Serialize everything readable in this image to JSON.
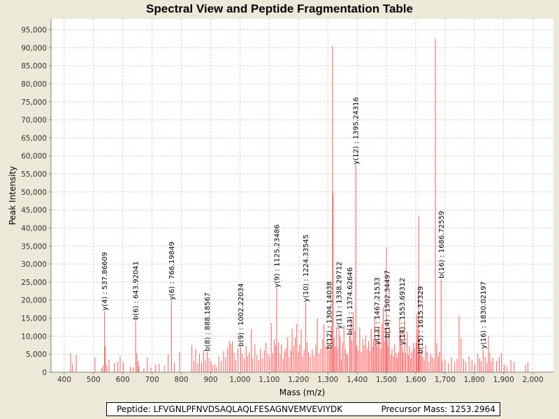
{
  "chart_data": {
    "type": "spectrum",
    "title": "Spectral View and Peptide Fragmentation Table",
    "xlabel": "Mass (m/z)",
    "ylabel": "Peak Intensity",
    "xlim": [
      355,
      2070
    ],
    "ylim": [
      0,
      98000
    ],
    "x_ticks": [
      400,
      500,
      600,
      700,
      800,
      900,
      1000,
      1100,
      1200,
      1300,
      1400,
      1500,
      1600,
      1700,
      1800,
      1900,
      2000
    ],
    "x_tick_labels": [
      "400",
      "500",
      "600",
      "700",
      "800",
      "900",
      "1,000",
      "1,100",
      "1,200",
      "1,300",
      "1,400",
      "1,500",
      "1,600",
      "1,700",
      "1,800",
      "1,900",
      "2,000"
    ],
    "y_ticks": [
      0,
      5000,
      10000,
      15000,
      20000,
      25000,
      30000,
      35000,
      40000,
      45000,
      50000,
      55000,
      60000,
      65000,
      70000,
      75000,
      80000,
      85000,
      90000,
      95000
    ],
    "y_tick_labels": [
      "0",
      "5,000",
      "10,000",
      "15,000",
      "20,000",
      "25,000",
      "30,000",
      "35,000",
      "40,000",
      "45,000",
      "50,000",
      "55,000",
      "60,000",
      "65,000",
      "70,000",
      "75,000",
      "80,000",
      "85,000",
      "90,000",
      "95,000"
    ],
    "grid": true,
    "peak_color": "#ff5a5a",
    "peaks": [
      [
        422,
        5200
      ],
      [
        428,
        2400
      ],
      [
        441,
        4800
      ],
      [
        505,
        4100
      ],
      [
        528,
        1200
      ],
      [
        533,
        1800
      ],
      [
        537.87,
        16900
      ],
      [
        540,
        7200
      ],
      [
        545,
        2000
      ],
      [
        553,
        3500
      ],
      [
        571,
        2500
      ],
      [
        583,
        2900
      ],
      [
        591,
        4400
      ],
      [
        602,
        2600
      ],
      [
        626,
        1500
      ],
      [
        635,
        1400
      ],
      [
        643.92,
        14300
      ],
      [
        648,
        5300
      ],
      [
        652,
        3100
      ],
      [
        655,
        1700
      ],
      [
        672,
        1100
      ],
      [
        684,
        4100
      ],
      [
        696,
        1400
      ],
      [
        712,
        2100
      ],
      [
        724,
        2300
      ],
      [
        742,
        1700
      ],
      [
        755,
        4900
      ],
      [
        766.2,
        19800
      ],
      [
        776,
        2700
      ],
      [
        794,
        5600
      ],
      [
        836,
        7500
      ],
      [
        843,
        3200
      ],
      [
        849,
        6400
      ],
      [
        856,
        2400
      ],
      [
        862,
        5100
      ],
      [
        869,
        2800
      ],
      [
        876,
        6100
      ],
      [
        882,
        3300
      ],
      [
        888.19,
        5600
      ],
      [
        894,
        3900
      ],
      [
        901,
        3000
      ],
      [
        906,
        2000
      ],
      [
        914,
        2200
      ],
      [
        920,
        1400
      ],
      [
        928,
        4300
      ],
      [
        936,
        3100
      ],
      [
        944,
        5800
      ],
      [
        951,
        4100
      ],
      [
        958,
        6800
      ],
      [
        964,
        8600
      ],
      [
        969,
        7900
      ],
      [
        974,
        8600
      ],
      [
        980,
        5400
      ],
      [
        986,
        3300
      ],
      [
        993,
        6600
      ],
      [
        1002.22,
        6900
      ],
      [
        1008,
        5100
      ],
      [
        1015,
        3900
      ],
      [
        1021,
        7300
      ],
      [
        1026,
        4400
      ],
      [
        1032,
        5500
      ],
      [
        1039,
        12000
      ],
      [
        1044,
        3800
      ],
      [
        1051,
        7700
      ],
      [
        1058,
        4800
      ],
      [
        1064,
        3300
      ],
      [
        1070,
        6500
      ],
      [
        1076,
        3800
      ],
      [
        1083,
        6100
      ],
      [
        1089,
        8200
      ],
      [
        1095,
        5100
      ],
      [
        1101,
        4300
      ],
      [
        1107,
        13600
      ],
      [
        1112,
        5300
      ],
      [
        1117,
        9100
      ],
      [
        1122,
        7600
      ],
      [
        1125.23,
        23300
      ],
      [
        1131,
        8400
      ],
      [
        1137,
        5100
      ],
      [
        1142,
        7700
      ],
      [
        1148,
        3600
      ],
      [
        1153,
        5900
      ],
      [
        1158,
        6700
      ],
      [
        1163,
        9700
      ],
      [
        1168,
        4200
      ],
      [
        1174,
        6100
      ],
      [
        1178,
        12100
      ],
      [
        1184,
        7300
      ],
      [
        1189,
        9600
      ],
      [
        1194,
        13500
      ],
      [
        1199,
        5700
      ],
      [
        1204,
        7700
      ],
      [
        1209,
        11900
      ],
      [
        1214,
        4300
      ],
      [
        1219,
        6200
      ],
      [
        1224.34,
        19300
      ],
      [
        1229,
        8300
      ],
      [
        1234,
        5500
      ],
      [
        1240,
        4400
      ],
      [
        1247,
        6300
      ],
      [
        1253,
        4600
      ],
      [
        1259,
        7700
      ],
      [
        1264,
        14900
      ],
      [
        1270,
        5200
      ],
      [
        1276,
        6500
      ],
      [
        1282,
        9100
      ],
      [
        1287,
        13300
      ],
      [
        1293,
        7300
      ],
      [
        1299,
        8400
      ],
      [
        1304.14,
        6200
      ],
      [
        1308,
        6400
      ],
      [
        1312,
        12300
      ],
      [
        1316,
        90500
      ],
      [
        1318,
        49700
      ],
      [
        1321,
        9600
      ],
      [
        1325,
        7200
      ],
      [
        1329,
        12500
      ],
      [
        1333,
        6600
      ],
      [
        1338.3,
        11800
      ],
      [
        1342,
        9900
      ],
      [
        1346,
        3600
      ],
      [
        1350,
        8200
      ],
      [
        1355,
        13000
      ],
      [
        1360,
        6500
      ],
      [
        1364,
        5100
      ],
      [
        1368,
        4800
      ],
      [
        1374.63,
        10100
      ],
      [
        1378,
        15300
      ],
      [
        1382,
        8800
      ],
      [
        1387,
        16600
      ],
      [
        1392,
        11400
      ],
      [
        1395.24,
        57400
      ],
      [
        1399,
        7400
      ],
      [
        1404,
        6100
      ],
      [
        1409,
        12500
      ],
      [
        1414,
        5600
      ],
      [
        1419,
        9200
      ],
      [
        1424,
        7400
      ],
      [
        1429,
        10200
      ],
      [
        1434,
        6500
      ],
      [
        1439,
        8600
      ],
      [
        1443,
        5800
      ],
      [
        1448,
        12100
      ],
      [
        1452,
        7000
      ],
      [
        1456,
        9100
      ],
      [
        1460,
        15500
      ],
      [
        1464,
        9300
      ],
      [
        1467.22,
        7400
      ],
      [
        1472,
        12300
      ],
      [
        1476,
        8400
      ],
      [
        1481,
        6600
      ],
      [
        1485,
        13400
      ],
      [
        1489,
        18000
      ],
      [
        1493,
        8500
      ],
      [
        1497,
        12200
      ],
      [
        1500,
        34600
      ],
      [
        1502.34,
        9300
      ],
      [
        1506,
        7200
      ],
      [
        1510,
        11700
      ],
      [
        1515,
        4800
      ],
      [
        1519,
        6400
      ],
      [
        1524,
        4300
      ],
      [
        1528,
        7800
      ],
      [
        1533,
        5300
      ],
      [
        1537,
        3900
      ],
      [
        1541,
        5500
      ],
      [
        1545,
        14900
      ],
      [
        1549,
        11400
      ],
      [
        1553.69,
        7300
      ],
      [
        1557,
        5500
      ],
      [
        1562,
        14500
      ],
      [
        1566,
        5200
      ],
      [
        1571,
        11200
      ],
      [
        1575,
        4600
      ],
      [
        1579,
        7200
      ],
      [
        1583,
        3800
      ],
      [
        1587,
        5800
      ],
      [
        1592,
        8100
      ],
      [
        1596,
        6500
      ],
      [
        1601,
        8200
      ],
      [
        1604,
        16000
      ],
      [
        1608,
        11800
      ],
      [
        1610,
        43300
      ],
      [
        1612,
        9200
      ],
      [
        1615.37,
        4900
      ],
      [
        1620,
        6000
      ],
      [
        1624,
        4300
      ],
      [
        1629,
        3300
      ],
      [
        1634,
        7500
      ],
      [
        1639,
        5700
      ],
      [
        1645,
        2900
      ],
      [
        1651,
        5100
      ],
      [
        1656,
        4200
      ],
      [
        1662,
        3800
      ],
      [
        1667,
        92500
      ],
      [
        1672,
        8100
      ],
      [
        1677,
        4300
      ],
      [
        1681,
        5700
      ],
      [
        1686.73,
        25800
      ],
      [
        1691,
        3200
      ],
      [
        1700,
        3500
      ],
      [
        1712,
        2500
      ],
      [
        1722,
        4100
      ],
      [
        1733,
        2800
      ],
      [
        1741,
        3700
      ],
      [
        1748,
        15600
      ],
      [
        1755,
        9400
      ],
      [
        1763,
        3700
      ],
      [
        1771,
        2900
      ],
      [
        1782,
        4500
      ],
      [
        1792,
        3400
      ],
      [
        1802,
        2300
      ],
      [
        1812,
        5100
      ],
      [
        1818,
        3800
      ],
      [
        1823,
        3000
      ],
      [
        1830.02,
        6300
      ],
      [
        1837,
        4200
      ],
      [
        1843,
        2600
      ],
      [
        1848,
        10000
      ],
      [
        1853,
        5400
      ],
      [
        1858,
        3000
      ],
      [
        1864,
        3900
      ],
      [
        1876,
        3100
      ],
      [
        1885,
        4200
      ],
      [
        1893,
        5300
      ],
      [
        1902,
        2100
      ],
      [
        1911,
        1600
      ],
      [
        1925,
        3400
      ],
      [
        1936,
        2900
      ],
      [
        1975,
        2100
      ],
      [
        1983,
        2700
      ]
    ],
    "annotations": [
      {
        "mz": 537.86609,
        "label": "y(4) : 537.86609"
      },
      {
        "mz": 643.92041,
        "label": "b(6) : 643.92041"
      },
      {
        "mz": 766.19849,
        "label": "y(6) : 766.19849"
      },
      {
        "mz": 888.18567,
        "label": "b(8) : 888.18567"
      },
      {
        "mz": 1002.22034,
        "label": "b(9) : 1002.22034"
      },
      {
        "mz": 1125.23486,
        "label": "y(9) : 1125.23486"
      },
      {
        "mz": 1224.33545,
        "label": "y(10) : 1224.33545"
      },
      {
        "mz": 1304.14038,
        "label": "b(12) : 1304.14038"
      },
      {
        "mz": 1338.29712,
        "label": "y(11) : 1338.29712"
      },
      {
        "mz": 1374.62646,
        "label": "b(13) : 1374.62646"
      },
      {
        "mz": 1395.24316,
        "label": "y(12) : 1395.24316"
      },
      {
        "mz": 1467.21533,
        "label": "y(13) : 1467.21533"
      },
      {
        "mz": 1502.34497,
        "label": "b(14) : 1502.34497"
      },
      {
        "mz": 1553.69312,
        "label": "y(14) : 1553.69312"
      },
      {
        "mz": 1615.37329,
        "label": "b(15) : 1615.37329"
      },
      {
        "mz": 1686.72559,
        "label": "b(16) : 1686.72559"
      },
      {
        "mz": 1830.02197,
        "label": "y(16) : 1830.02197"
      }
    ]
  },
  "footer": {
    "peptide": "Peptide: LFVGNLPFNVDSAQLAQLFESAGNVEMVEVIYDK",
    "precursor_mass": "Precursor Mass: 1253.2964"
  }
}
